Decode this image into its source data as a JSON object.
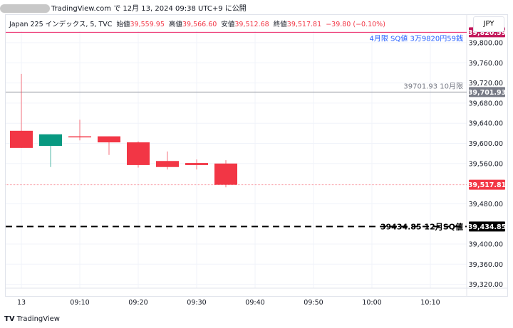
{
  "published": "TradingView.com で 12月 13, 2024 09:38 UTC+9 に公開",
  "legend": {
    "symbol": "Japan 225 インデックス, 5, TVC",
    "open_label": "始値",
    "open": "39,559.95",
    "high_label": "高値",
    "high": "39,566.60",
    "low_label": "安値",
    "low": "39,512.68",
    "close_label": "終値",
    "close": "39,517.81",
    "change": "−39.80 (−0.10%)"
  },
  "currency_button": "JPY",
  "brand": "TradingView",
  "chart_data": {
    "type": "candlestick",
    "ylim": [
      39300,
      39830
    ],
    "y_ticks": [
      "39,800.00",
      "39,760.00",
      "39,720.00",
      "39,680.00",
      "39,640.00",
      "39,600.00",
      "39,560.00",
      "39,480.00",
      "39,400.00",
      "39,360.00",
      "39,320.00"
    ],
    "y_tick_values": [
      39800,
      39760,
      39720,
      39680,
      39640,
      39600,
      39560,
      39480,
      39400,
      39360,
      39320
    ],
    "x_ticks": [
      "13",
      "09:10",
      "09:20",
      "09:30",
      "09:40",
      "09:50",
      "10:00",
      "10:10"
    ],
    "x_tick_times": [
      "09:00",
      "09:10",
      "09:20",
      "09:30",
      "09:40",
      "09:50",
      "10:00",
      "10:10"
    ],
    "x_range": [
      "08:55",
      "10:20"
    ],
    "grid": true,
    "candles": [
      {
        "time": "09:00",
        "open": 39625,
        "high": 39738,
        "low": 39591,
        "close": 39591
      },
      {
        "time": "09:05",
        "open": 39595,
        "high": 39618,
        "low": 39553,
        "close": 39618
      },
      {
        "time": "09:10",
        "open": 39614,
        "high": 39647,
        "low": 39606,
        "close": 39612
      },
      {
        "time": "09:15",
        "open": 39614,
        "high": 39614,
        "low": 39577,
        "close": 39602
      },
      {
        "time": "09:20",
        "open": 39602,
        "high": 39604,
        "low": 39552,
        "close": 39557
      },
      {
        "time": "09:25",
        "open": 39565,
        "high": 39584,
        "low": 39548,
        "close": 39553
      },
      {
        "time": "09:30",
        "open": 39561,
        "high": 39568,
        "low": 39548,
        "close": 39557
      },
      {
        "time": "09:35",
        "open": 39559.95,
        "high": 39566.6,
        "low": 39512.68,
        "close": 39517.81
      }
    ],
    "lines": [
      {
        "value": 39820.59,
        "label": "4月限 SQ値 3万9820円59銭",
        "axis_label": "39,820.59",
        "color": "#e91e63",
        "style": "solid",
        "label_color": "#2962ff"
      },
      {
        "value": 39701.93,
        "label": "39701.93 10月限",
        "axis_label": "39,701.93",
        "color": "#9598a1",
        "style": "solid",
        "label_color": "#787b86"
      },
      {
        "value": 39517.81,
        "label": "",
        "axis_label": "39,517.81",
        "color": "#f23645",
        "style": "dotted",
        "label_color": "#f23645"
      },
      {
        "value": 39434.85,
        "label": "39434.85 12月SQ値",
        "axis_label": "39,434.85",
        "color": "#000000",
        "style": "dashed",
        "label_color": "#000000"
      }
    ],
    "colors": {
      "up": "#089981",
      "down": "#f23645"
    }
  }
}
